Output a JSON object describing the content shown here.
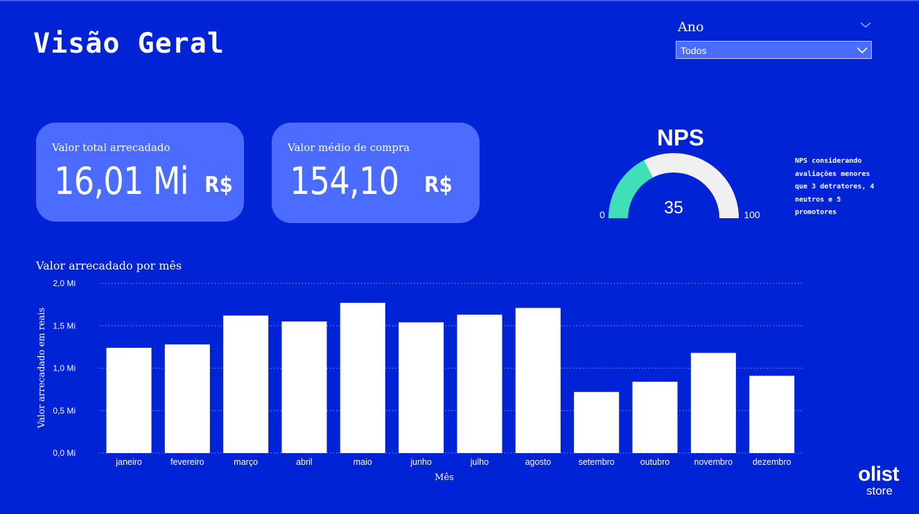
{
  "header": {
    "title": "Visão Geral"
  },
  "slicer": {
    "label": "Ano",
    "value": "Todos"
  },
  "kpis": [
    {
      "label": "Valor total arrecadado",
      "value": "16,01 Mi",
      "unit": "R$"
    },
    {
      "label": "Valor médio de compra",
      "value": "154,10",
      "unit": "R$"
    }
  ],
  "nps": {
    "title": "NPS",
    "value": 35,
    "value_label": "35",
    "min_label": "0",
    "max_label": "100",
    "note": "NPS considerando avaliações menores que 3 detratores, 4 neutros e 5 promotores",
    "fill_color": "#3fe0b8",
    "track_color": "#f0f0f0"
  },
  "logo": {
    "top": "olist",
    "bottom": "store"
  },
  "chart_data": {
    "type": "bar",
    "title": "Valor arrecadado por mês",
    "xlabel": "Mês",
    "ylabel": "Valor arrecadado em reais",
    "categories": [
      "janeiro",
      "fevereiro",
      "março",
      "abril",
      "maio",
      "junho",
      "julho",
      "agosto",
      "setembro",
      "outubro",
      "novembro",
      "dezembro"
    ],
    "values": [
      1.24,
      1.28,
      1.62,
      1.55,
      1.77,
      1.54,
      1.63,
      1.71,
      0.72,
      0.84,
      1.18,
      0.91
    ],
    "yticks": [
      {
        "value": 0.0,
        "label": "0,0 Mi"
      },
      {
        "value": 0.5,
        "label": "0,5 Mi"
      },
      {
        "value": 1.0,
        "label": "1,0 Mi"
      },
      {
        "value": 1.5,
        "label": "1,5 Mi"
      },
      {
        "value": 2.0,
        "label": "2,0 Mi"
      }
    ],
    "ylim": [
      0,
      2.0
    ],
    "grid": true,
    "bar_color": "#ffffff"
  }
}
